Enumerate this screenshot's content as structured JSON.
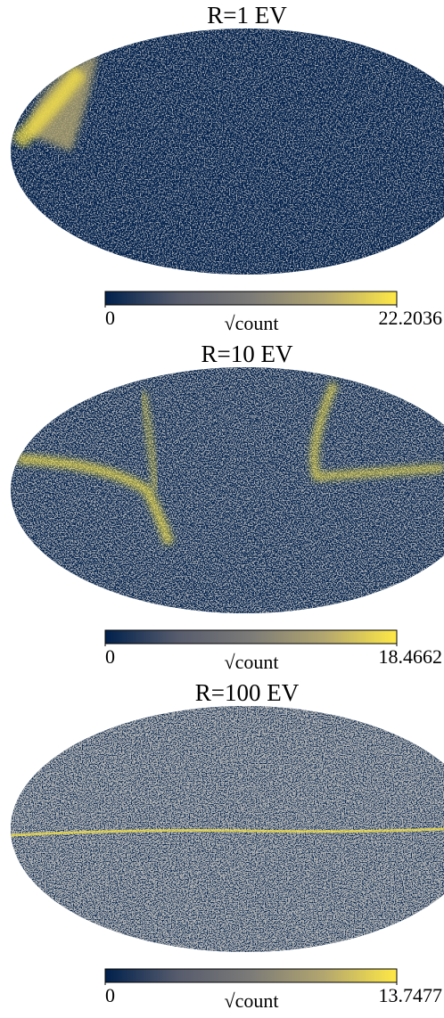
{
  "chart_data": [
    {
      "type": "map",
      "title": "R=1 EV",
      "colorbar_label": "√count",
      "clim": [
        0,
        22.2036
      ],
      "cticks": [
        0,
        22.2036
      ],
      "cmap": [
        "#00204c",
        "#575c6d",
        "#7c7b78",
        "#b3a66f",
        "#ffe945"
      ]
    },
    {
      "type": "map",
      "title": "R=10 EV",
      "colorbar_label": "√count",
      "clim": [
        0,
        18.4662
      ],
      "cticks": [
        0,
        18.4662
      ],
      "cmap": [
        "#00204c",
        "#575c6d",
        "#7c7b78",
        "#b3a66f",
        "#ffe945"
      ]
    },
    {
      "type": "map",
      "title": "R=100 EV",
      "colorbar_label": "√count",
      "clim": [
        0,
        13.7477
      ],
      "cticks": [
        0,
        13.7477
      ],
      "cmap": [
        "#00204c",
        "#575c6d",
        "#7c7b78",
        "#b3a66f",
        "#ffe945"
      ]
    }
  ]
}
